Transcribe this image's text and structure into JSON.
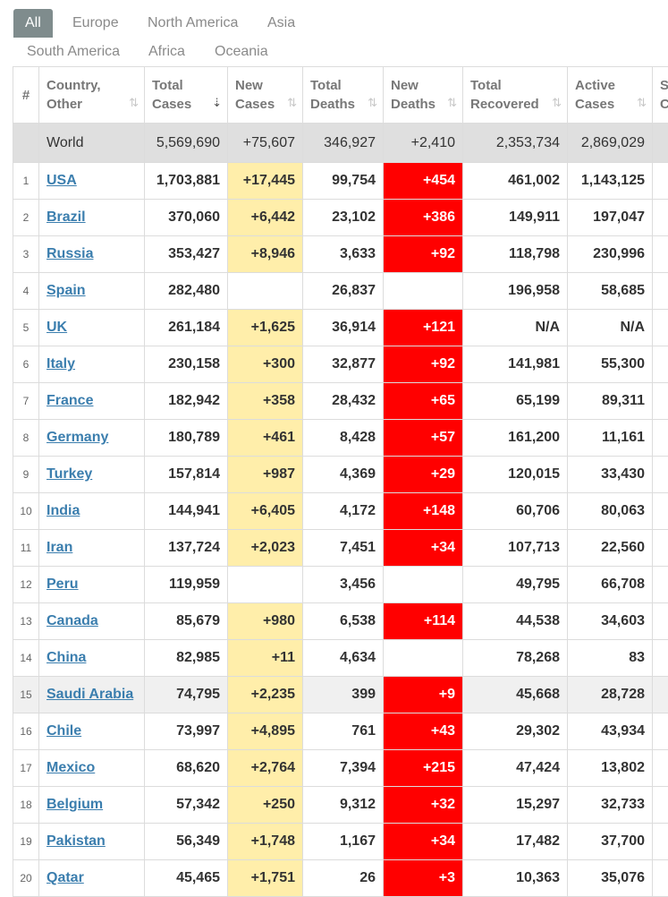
{
  "tabs": {
    "row1": [
      "All",
      "Europe",
      "North America",
      "Asia"
    ],
    "row2": [
      "South America",
      "Africa",
      "Oceania"
    ],
    "active": "All"
  },
  "headers": {
    "num": "#",
    "country": [
      "Country,",
      "Other"
    ],
    "total_cases": [
      "Total",
      "Cases"
    ],
    "new_cases": [
      "New",
      "Cases"
    ],
    "total_deaths": [
      "Total",
      "Deaths"
    ],
    "new_deaths": [
      "New",
      "Deaths"
    ],
    "total_recovered": [
      "Total",
      "Recovered"
    ],
    "active_cases": [
      "Active",
      "Cases"
    ],
    "serious": [
      "S",
      "C"
    ]
  },
  "colors": {
    "new_cases_bg": "#ffeeaa",
    "new_deaths_bg": "#ff0000",
    "link": "#3b7eae",
    "active_tab": "#7f8c8d"
  },
  "world": {
    "country": "World",
    "total_cases": "5,569,690",
    "new_cases": "+75,607",
    "total_deaths": "346,927",
    "new_deaths": "+2,410",
    "total_recovered": "2,353,734",
    "active_cases": "2,869,029"
  },
  "rows": [
    {
      "num": "1",
      "country": "USA",
      "total_cases": "1,703,881",
      "new_cases": "+17,445",
      "total_deaths": "99,754",
      "new_deaths": "+454",
      "total_recovered": "461,002",
      "active_cases": "1,143,125"
    },
    {
      "num": "2",
      "country": "Brazil",
      "total_cases": "370,060",
      "new_cases": "+6,442",
      "total_deaths": "23,102",
      "new_deaths": "+386",
      "total_recovered": "149,911",
      "active_cases": "197,047"
    },
    {
      "num": "3",
      "country": "Russia",
      "total_cases": "353,427",
      "new_cases": "+8,946",
      "total_deaths": "3,633",
      "new_deaths": "+92",
      "total_recovered": "118,798",
      "active_cases": "230,996"
    },
    {
      "num": "4",
      "country": "Spain",
      "total_cases": "282,480",
      "new_cases": "",
      "total_deaths": "26,837",
      "new_deaths": "",
      "total_recovered": "196,958",
      "active_cases": "58,685"
    },
    {
      "num": "5",
      "country": "UK",
      "total_cases": "261,184",
      "new_cases": "+1,625",
      "total_deaths": "36,914",
      "new_deaths": "+121",
      "total_recovered": "N/A",
      "active_cases": "N/A"
    },
    {
      "num": "6",
      "country": "Italy",
      "total_cases": "230,158",
      "new_cases": "+300",
      "total_deaths": "32,877",
      "new_deaths": "+92",
      "total_recovered": "141,981",
      "active_cases": "55,300"
    },
    {
      "num": "7",
      "country": "France",
      "total_cases": "182,942",
      "new_cases": "+358",
      "total_deaths": "28,432",
      "new_deaths": "+65",
      "total_recovered": "65,199",
      "active_cases": "89,311"
    },
    {
      "num": "8",
      "country": "Germany",
      "total_cases": "180,789",
      "new_cases": "+461",
      "total_deaths": "8,428",
      "new_deaths": "+57",
      "total_recovered": "161,200",
      "active_cases": "11,161"
    },
    {
      "num": "9",
      "country": "Turkey",
      "total_cases": "157,814",
      "new_cases": "+987",
      "total_deaths": "4,369",
      "new_deaths": "+29",
      "total_recovered": "120,015",
      "active_cases": "33,430"
    },
    {
      "num": "10",
      "country": "India",
      "total_cases": "144,941",
      "new_cases": "+6,405",
      "total_deaths": "4,172",
      "new_deaths": "+148",
      "total_recovered": "60,706",
      "active_cases": "80,063"
    },
    {
      "num": "11",
      "country": "Iran",
      "total_cases": "137,724",
      "new_cases": "+2,023",
      "total_deaths": "7,451",
      "new_deaths": "+34",
      "total_recovered": "107,713",
      "active_cases": "22,560"
    },
    {
      "num": "12",
      "country": "Peru",
      "total_cases": "119,959",
      "new_cases": "",
      "total_deaths": "3,456",
      "new_deaths": "",
      "total_recovered": "49,795",
      "active_cases": "66,708"
    },
    {
      "num": "13",
      "country": "Canada",
      "total_cases": "85,679",
      "new_cases": "+980",
      "total_deaths": "6,538",
      "new_deaths": "+114",
      "total_recovered": "44,538",
      "active_cases": "34,603"
    },
    {
      "num": "14",
      "country": "China",
      "total_cases": "82,985",
      "new_cases": "+11",
      "total_deaths": "4,634",
      "new_deaths": "",
      "total_recovered": "78,268",
      "active_cases": "83"
    },
    {
      "num": "15",
      "country": "Saudi Arabia",
      "total_cases": "74,795",
      "new_cases": "+2,235",
      "total_deaths": "399",
      "new_deaths": "+9",
      "total_recovered": "45,668",
      "active_cases": "28,728",
      "highlight": true
    },
    {
      "num": "16",
      "country": "Chile",
      "total_cases": "73,997",
      "new_cases": "+4,895",
      "total_deaths": "761",
      "new_deaths": "+43",
      "total_recovered": "29,302",
      "active_cases": "43,934"
    },
    {
      "num": "17",
      "country": "Mexico",
      "total_cases": "68,620",
      "new_cases": "+2,764",
      "total_deaths": "7,394",
      "new_deaths": "+215",
      "total_recovered": "47,424",
      "active_cases": "13,802"
    },
    {
      "num": "18",
      "country": "Belgium",
      "total_cases": "57,342",
      "new_cases": "+250",
      "total_deaths": "9,312",
      "new_deaths": "+32",
      "total_recovered": "15,297",
      "active_cases": "32,733"
    },
    {
      "num": "19",
      "country": "Pakistan",
      "total_cases": "56,349",
      "new_cases": "+1,748",
      "total_deaths": "1,167",
      "new_deaths": "+34",
      "total_recovered": "17,482",
      "active_cases": "37,700"
    },
    {
      "num": "20",
      "country": "Qatar",
      "total_cases": "45,465",
      "new_cases": "+1,751",
      "total_deaths": "26",
      "new_deaths": "+3",
      "total_recovered": "10,363",
      "active_cases": "35,076"
    }
  ]
}
